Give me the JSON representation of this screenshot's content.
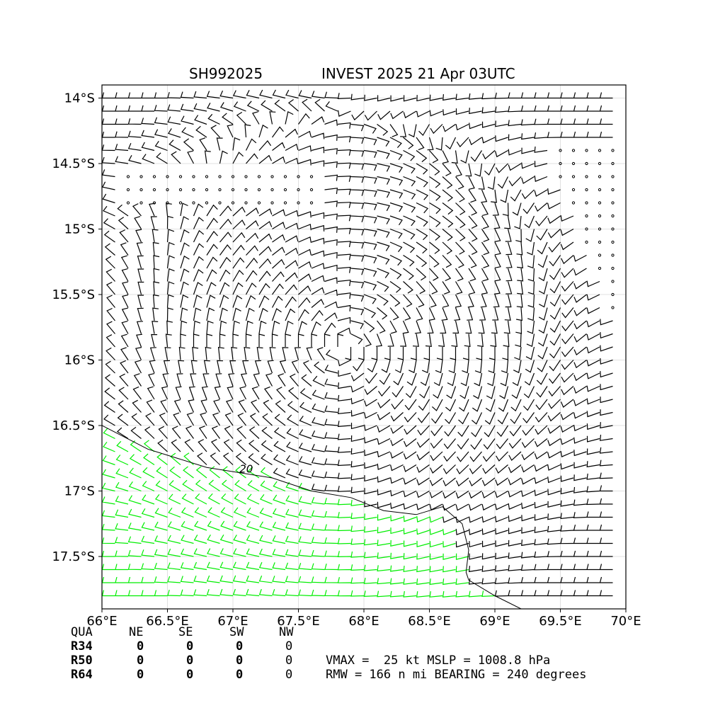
{
  "header": {
    "storm_id": "SH992025",
    "storm_info": "INVEST 2025 21 Apr 03UTC"
  },
  "chart_data": {
    "type": "wind_barb_map",
    "xlabel": "",
    "ylabel": "",
    "x_ticks": [
      "66°E",
      "66.5°E",
      "67°E",
      "67.5°E",
      "68°E",
      "68.5°E",
      "69°E",
      "69.5°E",
      "70°E"
    ],
    "y_ticks": [
      "14°S",
      "14.5°S",
      "15°S",
      "15.5°S",
      "16°S",
      "16.5°S",
      "17°S",
      "17.5°S"
    ],
    "xlim": [
      66.0,
      70.0
    ],
    "ylim": [
      -17.9,
      -13.9
    ],
    "grid": true,
    "center": {
      "lon": 67.85,
      "lat": -15.9
    },
    "contours": [
      {
        "label": "20",
        "points": [
          [
            66.0,
            -16.5
          ],
          [
            66.35,
            -16.68
          ],
          [
            66.8,
            -16.82
          ],
          [
            67.3,
            -16.9
          ],
          [
            67.6,
            -17.0
          ],
          [
            67.9,
            -17.05
          ],
          [
            68.15,
            -17.15
          ],
          [
            68.4,
            -17.18
          ],
          [
            68.6,
            -17.12
          ],
          [
            68.75,
            -17.25
          ],
          [
            68.8,
            -17.45
          ],
          [
            68.78,
            -17.62
          ],
          [
            68.8,
            -17.68
          ],
          [
            69.0,
            -17.8
          ],
          [
            69.2,
            -17.9
          ]
        ]
      }
    ],
    "barb_colors": {
      "default": "#000000",
      "above_threshold": "#00ee00"
    }
  },
  "wind_radii": {
    "columns": [
      "QUA",
      "NE",
      "SE",
      "SW",
      "NW"
    ],
    "rows": [
      {
        "label": "R34",
        "values": [
          "0",
          "0",
          "0",
          "0"
        ]
      },
      {
        "label": "R50",
        "values": [
          "0",
          "0",
          "0",
          "0"
        ]
      },
      {
        "label": "R64",
        "values": [
          "0",
          "0",
          "0",
          "0"
        ]
      }
    ]
  },
  "summary": {
    "line1": "VMAX =  25 kt MSLP = 1008.8 hPa",
    "line2": "RMW = 166 n mi BEARING = 240 degrees"
  }
}
